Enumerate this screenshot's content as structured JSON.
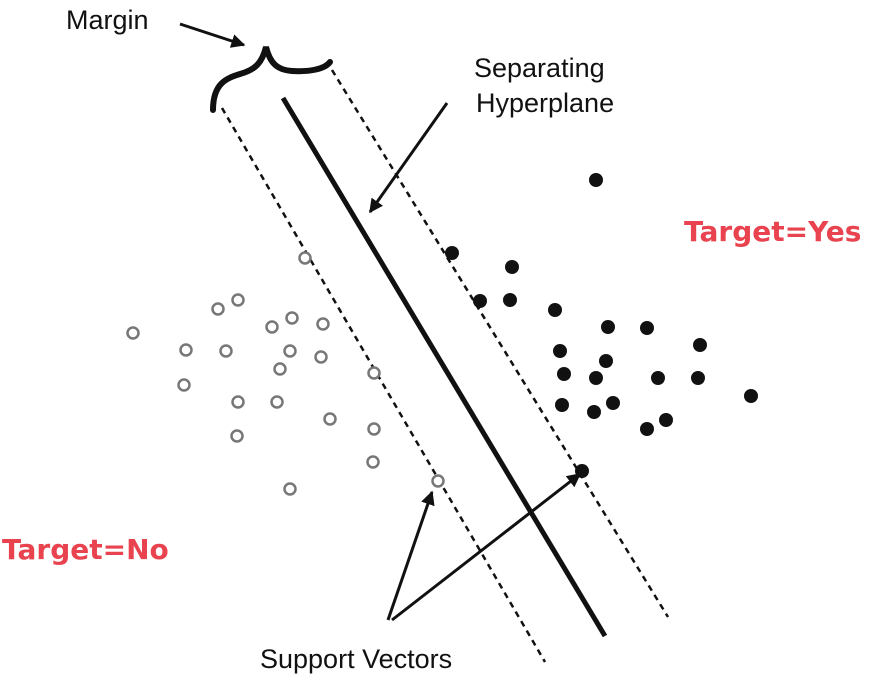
{
  "labels": {
    "margin": "Margin",
    "separating_line1": "Separating",
    "separating_line2": "Hyperplane",
    "target_yes": "Target=Yes",
    "target_no": "Target=No",
    "support_vectors": "Support Vectors"
  },
  "colors": {
    "target_label": "#e8434f",
    "ink": "#111111",
    "open_point_stroke": "#777777"
  },
  "classes": {
    "no": {
      "marker": "open-circle"
    },
    "yes": {
      "marker": "filled-circle"
    }
  }
}
